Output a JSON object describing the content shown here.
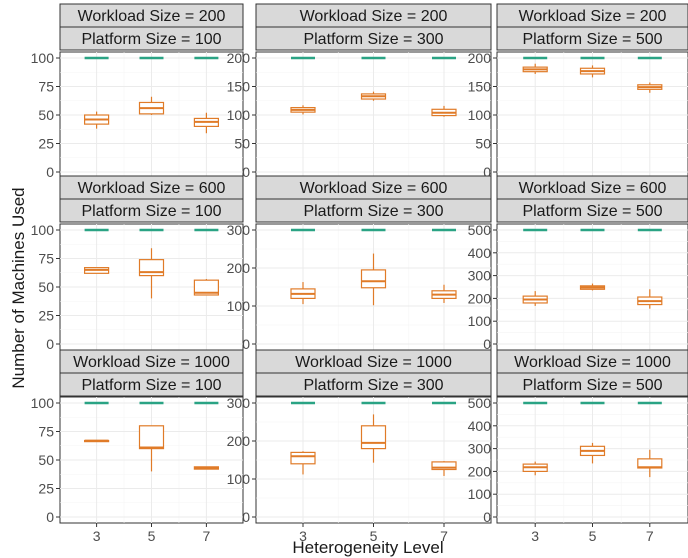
{
  "chart_data": {
    "type": "boxplot-facet",
    "title": "",
    "xlabel": "Heterogeneity Level",
    "ylabel": "Number of Machines Used",
    "x_categories": [
      "3",
      "5",
      "7"
    ],
    "colors": {
      "box": "#e07b28",
      "reference": "#2aa384",
      "strip_fill": "#d9d9d9"
    },
    "grid": true,
    "panels": [
      {
        "workload": "Workload Size = 200",
        "platform": "Platform Size = 100",
        "ylim": [
          0,
          100
        ],
        "yticks": [
          0,
          25,
          50,
          75,
          100
        ],
        "reference": 100,
        "boxes": [
          {
            "x": "3",
            "min": 38,
            "q1": 42,
            "median": 46,
            "q3": 50,
            "max": 53
          },
          {
            "x": "5",
            "min": 50,
            "q1": 51,
            "median": 56,
            "q3": 61,
            "max": 66
          },
          {
            "x": "7",
            "min": 34,
            "q1": 40,
            "median": 44,
            "q3": 47,
            "max": 52
          }
        ]
      },
      {
        "workload": "Workload Size = 200",
        "platform": "Platform Size = 300",
        "ylim": [
          0,
          200
        ],
        "yticks": [
          0,
          50,
          100,
          150,
          200
        ],
        "reference": 200,
        "boxes": [
          {
            "x": "3",
            "min": 101,
            "q1": 105,
            "median": 109,
            "q3": 113,
            "max": 117
          },
          {
            "x": "5",
            "min": 125,
            "q1": 128,
            "median": 133,
            "q3": 137,
            "max": 141
          },
          {
            "x": "7",
            "min": 97,
            "q1": 99,
            "median": 104,
            "q3": 110,
            "max": 116
          }
        ]
      },
      {
        "workload": "Workload Size = 200",
        "platform": "Platform Size = 500",
        "ylim": [
          0,
          200
        ],
        "yticks": [
          0,
          50,
          100,
          150,
          200
        ],
        "reference": 200,
        "boxes": [
          {
            "x": "3",
            "min": 172,
            "q1": 176,
            "median": 180,
            "q3": 184,
            "max": 190
          },
          {
            "x": "5",
            "min": 166,
            "q1": 172,
            "median": 177,
            "q3": 182,
            "max": 187
          },
          {
            "x": "7",
            "min": 139,
            "q1": 145,
            "median": 149,
            "q3": 153,
            "max": 157
          }
        ]
      },
      {
        "workload": "Workload Size = 600",
        "platform": "Platform Size = 100",
        "ylim": [
          0,
          100
        ],
        "yticks": [
          0,
          25,
          50,
          75,
          100
        ],
        "reference": 100,
        "boxes": [
          {
            "x": "3",
            "min": 62,
            "q1": 62,
            "median": 65,
            "q3": 67,
            "max": 67
          },
          {
            "x": "5",
            "min": 40,
            "q1": 60,
            "median": 63,
            "q3": 74,
            "max": 84
          },
          {
            "x": "7",
            "min": 43,
            "q1": 43,
            "median": 45,
            "q3": 56,
            "max": 57
          }
        ]
      },
      {
        "workload": "Workload Size = 600",
        "platform": "Platform Size = 300",
        "ylim": [
          0,
          300
        ],
        "yticks": [
          0,
          100,
          200,
          300
        ],
        "reference": 300,
        "boxes": [
          {
            "x": "3",
            "min": 105,
            "q1": 120,
            "median": 132,
            "q3": 145,
            "max": 163
          },
          {
            "x": "5",
            "min": 102,
            "q1": 148,
            "median": 165,
            "q3": 195,
            "max": 238
          },
          {
            "x": "7",
            "min": 108,
            "q1": 120,
            "median": 130,
            "q3": 140,
            "max": 156
          }
        ]
      },
      {
        "workload": "Workload Size = 600",
        "platform": "Platform Size = 500",
        "ylim": [
          0,
          500
        ],
        "yticks": [
          0,
          100,
          200,
          300,
          400,
          500
        ],
        "reference": 500,
        "boxes": [
          {
            "x": "3",
            "min": 167,
            "q1": 180,
            "median": 195,
            "q3": 210,
            "max": 232
          },
          {
            "x": "5",
            "min": 235,
            "q1": 240,
            "median": 248,
            "q3": 255,
            "max": 265
          },
          {
            "x": "7",
            "min": 155,
            "q1": 173,
            "median": 188,
            "q3": 206,
            "max": 240
          }
        ]
      },
      {
        "workload": "Workload Size = 1000",
        "platform": "Platform Size = 100",
        "ylim": [
          0,
          100
        ],
        "yticks": [
          0,
          25,
          50,
          75,
          100
        ],
        "reference": 100,
        "boxes": [
          {
            "x": "3",
            "min": 67,
            "q1": 67,
            "median": 67,
            "q3": 67,
            "max": 67
          },
          {
            "x": "5",
            "min": 40,
            "q1": 60,
            "median": 61,
            "q3": 80,
            "max": 80
          },
          {
            "x": "7",
            "min": 42,
            "q1": 42,
            "median": 43,
            "q3": 44,
            "max": 44
          }
        ]
      },
      {
        "workload": "Workload Size = 1000",
        "platform": "Platform Size = 300",
        "ylim": [
          0,
          300
        ],
        "yticks": [
          0,
          100,
          200,
          300
        ],
        "reference": 300,
        "boxes": [
          {
            "x": "3",
            "min": 112,
            "q1": 140,
            "median": 160,
            "q3": 170,
            "max": 173
          },
          {
            "x": "5",
            "min": 143,
            "q1": 180,
            "median": 195,
            "q3": 240,
            "max": 270
          },
          {
            "x": "7",
            "min": 108,
            "q1": 125,
            "median": 130,
            "q3": 145,
            "max": 147
          }
        ]
      },
      {
        "workload": "Workload Size = 1000",
        "platform": "Platform Size = 500",
        "ylim": [
          0,
          500
        ],
        "yticks": [
          0,
          100,
          200,
          300,
          400,
          500
        ],
        "reference": 500,
        "boxes": [
          {
            "x": "3",
            "min": 183,
            "q1": 200,
            "median": 218,
            "q3": 232,
            "max": 243
          },
          {
            "x": "5",
            "min": 235,
            "q1": 270,
            "median": 290,
            "q3": 310,
            "max": 325
          },
          {
            "x": "7",
            "min": 175,
            "q1": 215,
            "median": 218,
            "q3": 255,
            "max": 295
          }
        ]
      }
    ]
  }
}
